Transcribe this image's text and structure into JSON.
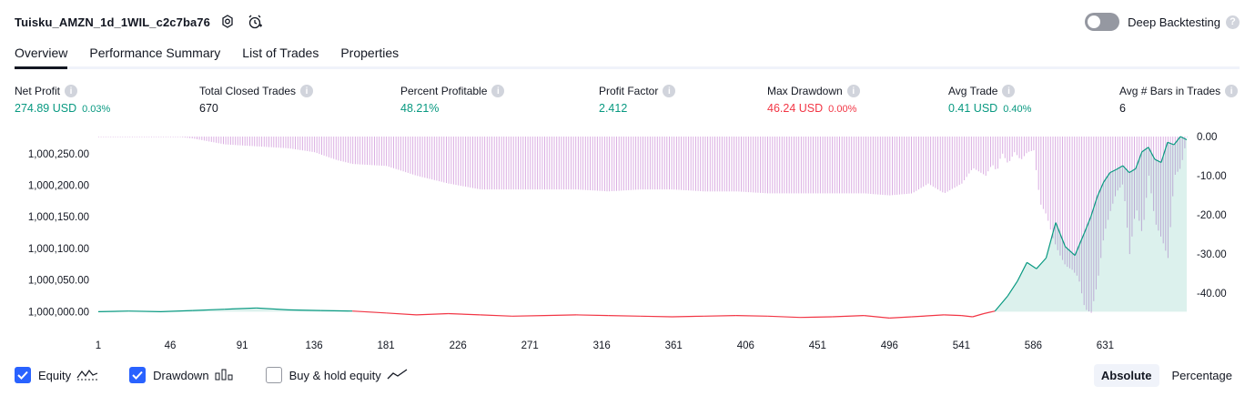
{
  "header": {
    "strategy_name": "Tuisku_AMZN_1d_1WIL_c2c7ba76",
    "deep_backtesting_label": "Deep Backtesting",
    "deep_backtesting_enabled": false
  },
  "tabs": [
    {
      "label": "Overview",
      "active": true
    },
    {
      "label": "Performance Summary",
      "active": false
    },
    {
      "label": "List of Trades",
      "active": false
    },
    {
      "label": "Properties",
      "active": false
    }
  ],
  "stats": {
    "net_profit": {
      "label": "Net Profit",
      "value": "274.89 USD",
      "pct": "0.03%"
    },
    "total_closed_trades": {
      "label": "Total Closed Trades",
      "value": "670"
    },
    "percent_profitable": {
      "label": "Percent Profitable",
      "value": "48.21%"
    },
    "profit_factor": {
      "label": "Profit Factor",
      "value": "2.412"
    },
    "max_drawdown": {
      "label": "Max Drawdown",
      "value": "46.24 USD",
      "pct": "0.00%"
    },
    "avg_trade": {
      "label": "Avg Trade",
      "value": "0.41 USD",
      "pct": "0.40%"
    },
    "avg_bars": {
      "label": "Avg # Bars in Trades",
      "value": "6"
    }
  },
  "colors": {
    "positive": "#089981",
    "negative": "#f23645",
    "drawdown": "#ce93d8",
    "checkbox": "#2962ff"
  },
  "chart_data": {
    "type": "area",
    "x_tick_labels": [
      "1",
      "46",
      "91",
      "136",
      "181",
      "226",
      "271",
      "316",
      "361",
      "406",
      "451",
      "496",
      "541",
      "586",
      "631"
    ],
    "left_axis": {
      "ticks": [
        "1,000,000.00",
        "1,000,050.00",
        "1,000,100.00",
        "1,000,150.00",
        "1,000,200.00",
        "1,000,250.00"
      ],
      "range": [
        999992,
        1000277
      ]
    },
    "right_axis": {
      "ticks": [
        "0.00",
        "-10.00",
        "-20.00",
        "-30.00",
        "-40.00"
      ],
      "range": [
        -46,
        0
      ]
    },
    "equity": {
      "x": [
        1,
        20,
        40,
        60,
        80,
        100,
        120,
        140,
        160,
        181,
        200,
        220,
        240,
        260,
        280,
        300,
        320,
        340,
        360,
        380,
        400,
        420,
        440,
        460,
        480,
        496,
        510,
        530,
        541,
        548,
        555,
        562,
        570,
        576,
        582,
        588,
        594,
        600,
        606,
        612,
        618,
        622,
        626,
        630,
        634,
        638,
        642,
        646,
        650,
        654,
        658,
        662,
        666,
        670,
        674,
        678,
        682
      ],
      "values": [
        1000000,
        1000001,
        1000000,
        1000002,
        1000004,
        1000006,
        1000003,
        1000002,
        1000001,
        999998,
        999995,
        999997,
        999995,
        999993,
        999994,
        999995,
        999994,
        999993,
        999992,
        999993,
        999994,
        999993,
        999991,
        999992,
        999994,
        999990,
        999992,
        999995,
        999994,
        999992,
        999997,
        1000001,
        1000025,
        1000048,
        1000078,
        1000068,
        1000085,
        1000141,
        1000103,
        1000089,
        1000125,
        1000150,
        1000182,
        1000205,
        1000220,
        1000225,
        1000231,
        1000220,
        1000226,
        1000253,
        1000260,
        1000241,
        1000236,
        1000268,
        1000264,
        1000277,
        1000272
      ]
    },
    "drawdown": {
      "x": [
        1,
        50,
        60,
        80,
        100,
        120,
        136,
        150,
        160,
        181,
        200,
        220,
        240,
        260,
        280,
        300,
        320,
        340,
        360,
        380,
        400,
        420,
        440,
        460,
        480,
        496,
        510,
        520,
        530,
        541,
        548,
        552,
        556,
        560,
        563,
        566,
        570,
        574,
        578,
        582,
        586,
        590,
        594,
        598,
        602,
        606,
        610,
        614,
        618,
        622,
        626,
        630,
        634,
        638,
        642,
        646,
        650,
        654,
        658,
        662,
        666,
        670,
        674,
        678,
        682
      ],
      "values": [
        0,
        0,
        -0.5,
        -2,
        -2.5,
        -3,
        -4,
        -6,
        -7,
        -7.5,
        -10,
        -12,
        -13.5,
        -13.5,
        -13.5,
        -13.5,
        -14,
        -13.5,
        -13.5,
        -14,
        -14,
        -14.5,
        -14.5,
        -14.5,
        -14.5,
        -15,
        -14.5,
        -12,
        -14.5,
        -12,
        -8,
        -9,
        -10,
        -7,
        -9,
        -4,
        -7,
        -4,
        -6,
        -4,
        -3.5,
        -17,
        -20,
        -26,
        -30,
        -33,
        -34,
        -36,
        -44,
        -45,
        -37,
        -25,
        -19,
        -14,
        -12,
        -30,
        -18,
        -25,
        -10,
        -22,
        -26,
        -31,
        -10,
        -8,
        0
      ]
    },
    "legend": [
      {
        "label": "Equity",
        "checked": true,
        "icon": "equity-line-icon"
      },
      {
        "label": "Drawdown",
        "checked": true,
        "icon": "drawdown-bars-icon"
      },
      {
        "label": "Buy & hold equity",
        "checked": false,
        "icon": "buy-hold-line-icon"
      }
    ]
  },
  "modes": [
    {
      "label": "Absolute",
      "active": true
    },
    {
      "label": "Percentage",
      "active": false
    }
  ]
}
